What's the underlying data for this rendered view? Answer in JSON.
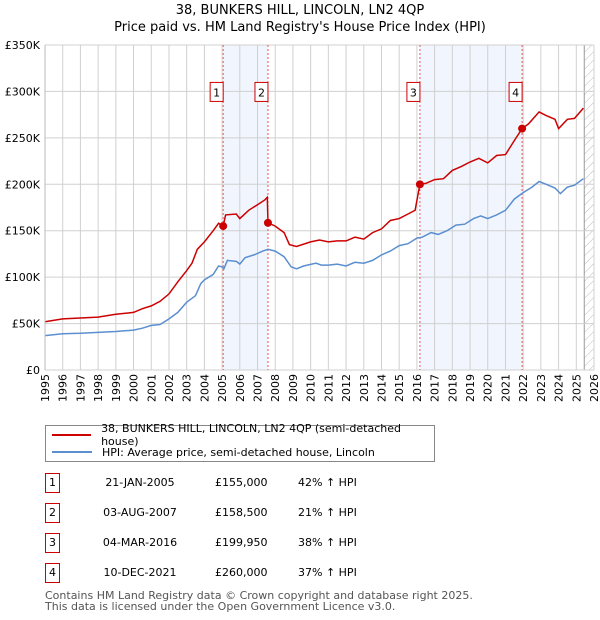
{
  "chart_data": {
    "type": "line",
    "title": "38, BUNKERS HILL, LINCOLN, LN2 4QP",
    "subtitle": "Price paid vs. HM Land Registry's House Price Index (HPI)",
    "xlim": [
      1995,
      2026
    ],
    "ylim": [
      0,
      350000
    ],
    "x_ticks": [
      "1995",
      "1996",
      "1997",
      "1998",
      "1999",
      "2000",
      "2001",
      "2002",
      "2003",
      "2004",
      "2005",
      "2006",
      "2007",
      "2008",
      "2009",
      "2010",
      "2011",
      "2012",
      "2013",
      "2014",
      "2015",
      "2016",
      "2017",
      "2018",
      "2019",
      "2020",
      "2021",
      "2022",
      "2023",
      "2024",
      "2025",
      "2026"
    ],
    "y_ticks": [
      {
        "v": 0,
        "label": "£0"
      },
      {
        "v": 50000,
        "label": "£50K"
      },
      {
        "v": 100000,
        "label": "£100K"
      },
      {
        "v": 150000,
        "label": "£150K"
      },
      {
        "v": 200000,
        "label": "£200K"
      },
      {
        "v": 250000,
        "label": "£250K"
      },
      {
        "v": 300000,
        "label": "£300K"
      },
      {
        "v": 350000,
        "label": "£350K"
      }
    ],
    "grid": true,
    "legend_placement": "below",
    "series": [
      {
        "name": "38, BUNKERS HILL, LINCOLN, LN2 4QP (semi-detached house)",
        "color": "#cc0000",
        "x": [
          1995,
          1996,
          1997,
          1998,
          1999,
          2000,
          2000.5,
          2001,
          2001.5,
          2002,
          2002.5,
          2003,
          2003.3,
          2003.6,
          2004,
          2004.5,
          2004.8,
          2005.06,
          2005.2,
          2005.8,
          2006,
          2006.5,
          2007,
          2007.4,
          2007.55,
          2007.59,
          2008,
          2008.5,
          2008.8,
          2009.2,
          2010,
          2010.5,
          2011,
          2011.5,
          2012,
          2012.5,
          2013,
          2013.5,
          2014,
          2014.5,
          2015,
          2015.5,
          2015.9,
          2016.17,
          2016.5,
          2017,
          2017.5,
          2018,
          2018.5,
          2019,
          2019.5,
          2020,
          2020.5,
          2021,
          2021.5,
          2021.94,
          2022.3,
          2022.9,
          2023.3,
          2023.8,
          2024,
          2024.5,
          2024.9,
          2025.4
        ],
        "y": [
          52000,
          55000,
          56000,
          57000,
          60000,
          62000,
          66000,
          69000,
          74000,
          82000,
          95000,
          107000,
          115000,
          130000,
          138000,
          150000,
          158000,
          155000,
          167000,
          168000,
          163000,
          172000,
          178000,
          183000,
          186000,
          158500,
          155000,
          148000,
          135000,
          133000,
          138000,
          140000,
          138000,
          139000,
          139000,
          143000,
          141000,
          148000,
          152000,
          161000,
          163000,
          168000,
          172000,
          199950,
          201000,
          205000,
          206000,
          215000,
          219000,
          224000,
          228000,
          223000,
          231000,
          232000,
          247000,
          260000,
          265000,
          278000,
          274000,
          270000,
          260000,
          270000,
          271000,
          282000
        ]
      },
      {
        "name": "HPI: Average price, semi-detached house, Lincoln",
        "color": "#5b8fd0",
        "x": [
          1995,
          1996,
          1997,
          1998,
          1999,
          2000,
          2000.5,
          2001,
          2001.5,
          2002,
          2002.5,
          2003,
          2003.5,
          2003.8,
          2004,
          2004.5,
          2004.8,
          2005,
          2005.1,
          2005.3,
          2005.8,
          2006,
          2006.3,
          2006.8,
          2007.3,
          2007.6,
          2008,
          2008.5,
          2008.9,
          2009.2,
          2009.6,
          2010.3,
          2010.6,
          2011,
          2011.5,
          2012,
          2012.5,
          2013,
          2013.5,
          2014,
          2014.5,
          2015,
          2015.5,
          2016,
          2016.3,
          2016.8,
          2017.2,
          2017.7,
          2018.2,
          2018.7,
          2019.2,
          2019.6,
          2020,
          2020.5,
          2021,
          2021.5,
          2022,
          2022.5,
          2022.9,
          2023.3,
          2023.8,
          2024.1,
          2024.5,
          2024.9,
          2025.4
        ],
        "y": [
          37000,
          39000,
          39500,
          40500,
          41500,
          43000,
          45000,
          48000,
          49000,
          55000,
          62000,
          73000,
          80000,
          93000,
          97000,
          103000,
          112000,
          111000,
          109000,
          118000,
          117000,
          114000,
          121000,
          124000,
          128000,
          130000,
          128000,
          122000,
          111000,
          109000,
          112000,
          115000,
          113000,
          113000,
          114000,
          112000,
          116000,
          115000,
          118000,
          124000,
          128000,
          134000,
          136000,
          142000,
          143000,
          148000,
          146000,
          150000,
          156000,
          157000,
          163000,
          166000,
          163000,
          167000,
          172000,
          184000,
          191000,
          197000,
          203000,
          200000,
          196000,
          190000,
          197000,
          199000,
          206000
        ]
      }
    ],
    "sales": [
      {
        "id": "1",
        "x": 2005.06,
        "y": 155000
      },
      {
        "id": "2",
        "x": 2007.59,
        "y": 158500
      },
      {
        "id": "3",
        "x": 2016.17,
        "y": 199950
      },
      {
        "id": "4",
        "x": 2021.94,
        "y": 260000
      }
    ],
    "shaded_ranges": [
      [
        2005.06,
        2007.59
      ],
      [
        2016.17,
        2021.94
      ]
    ],
    "forecast_hatch_from": 2025.45
  },
  "header": {
    "line1": "38, BUNKERS HILL, LINCOLN, LN2 4QP",
    "line2": "Price paid vs. HM Land Registry's House Price Index (HPI)"
  },
  "legend": {
    "items": [
      {
        "label": "38, BUNKERS HILL, LINCOLN, LN2 4QP (semi-detached house)",
        "color": "#cc0000"
      },
      {
        "label": "HPI: Average price, semi-detached house, Lincoln",
        "color": "#5b8fd0"
      }
    ]
  },
  "table": [
    {
      "num": "1",
      "date": "21-JAN-2005",
      "price": "£155,000",
      "hpi": "42% ↑ HPI"
    },
    {
      "num": "2",
      "date": "03-AUG-2007",
      "price": "£158,500",
      "hpi": "21% ↑ HPI"
    },
    {
      "num": "3",
      "date": "04-MAR-2016",
      "price": "£199,950",
      "hpi": "38% ↑ HPI"
    },
    {
      "num": "4",
      "date": "10-DEC-2021",
      "price": "£260,000",
      "hpi": "37% ↑ HPI"
    }
  ],
  "footer": {
    "line1": "Contains HM Land Registry data © Crown copyright and database right 2025.",
    "line2": "This data is licensed under the Open Government Licence v3.0."
  }
}
